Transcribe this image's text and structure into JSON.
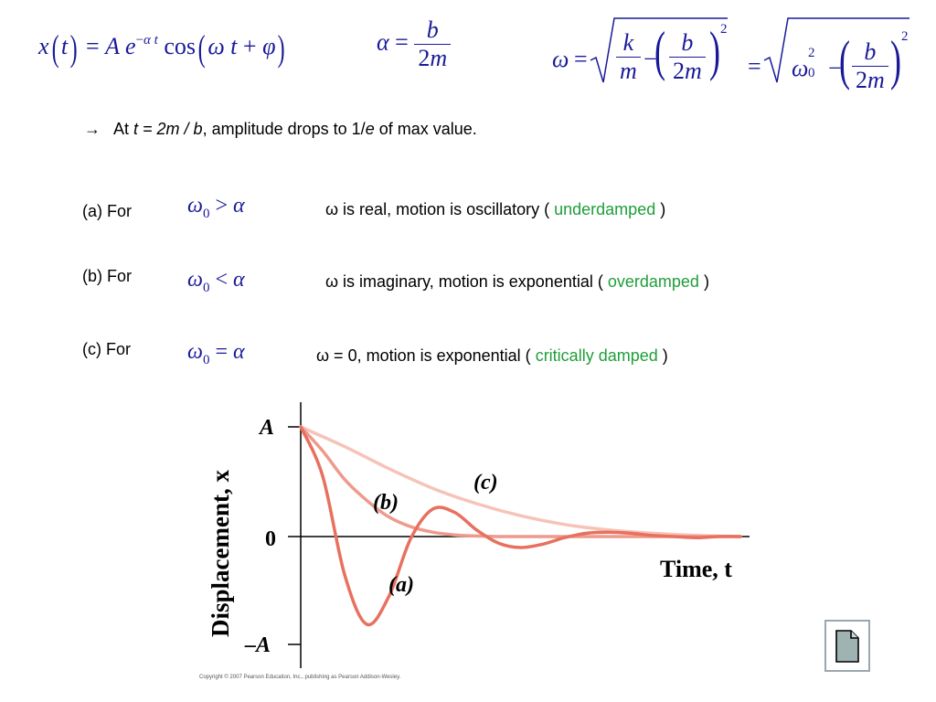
{
  "equations": {
    "x_of_t": "x(t) = A e^(−αt) cos(ωt + φ)",
    "alpha_def": "α = b / 2m",
    "omega_def": "ω = √( k/m − (b/2m)² ) = √( ω0² − (b/2m)² )"
  },
  "arrow_line": {
    "arrow": "→",
    "prefix": "At ",
    "condition": "t = 2m / b",
    "suffix": ",  amplitude drops to 1/",
    "e": "e",
    "end": " of max value."
  },
  "cases": [
    {
      "label": "(a)  For",
      "relation": ">",
      "desc": "ω is real,   motion is oscillatory  ( ",
      "term": "underdamped",
      "close": " )"
    },
    {
      "label": "(b)  For",
      "relation": "<",
      "desc": "ω is imaginary,   motion is exponential  ( ",
      "term": "overdamped",
      "close": " )"
    },
    {
      "label": "(c)  For",
      "relation": "=",
      "desc": "ω = 0,   motion is exponential  ( ",
      "term": "critically damped",
      "close": " )"
    }
  ],
  "chart_data": {
    "type": "line",
    "ylabel": "Displacement, x",
    "xlabel": "Time, t",
    "y_ticks": [
      "A",
      "0",
      "–A"
    ],
    "series": [
      {
        "name": "(a)",
        "color": "#e8705f",
        "x": [
          0,
          0.5,
          1,
          1.5,
          2,
          2.5,
          3,
          3.5,
          4,
          4.5,
          5,
          5.5,
          6,
          6.5,
          7,
          7.5,
          8,
          8.5,
          9,
          9.5,
          10
        ],
        "y": [
          1.0,
          0.55,
          -0.35,
          -0.8,
          -0.55,
          -0.02,
          0.25,
          0.22,
          0.06,
          -0.06,
          -0.1,
          -0.07,
          -0.01,
          0.03,
          0.04,
          0.03,
          0.01,
          0.0,
          -0.01,
          0.0,
          0.0
        ]
      },
      {
        "name": "(b)",
        "color": "#ee9a8c",
        "x": [
          0,
          0.5,
          1,
          1.5,
          2,
          2.5,
          3,
          3.5,
          4,
          4.5,
          5,
          6,
          7,
          8,
          9,
          10
        ],
        "y": [
          1.0,
          0.78,
          0.52,
          0.33,
          0.18,
          0.09,
          0.04,
          0.015,
          0.005,
          0.0,
          0.0,
          0.0,
          0.0,
          0.0,
          0.0,
          0.0
        ]
      },
      {
        "name": "(c)",
        "color": "#f6c3b8",
        "x": [
          0,
          1,
          2,
          3,
          4,
          5,
          6,
          7,
          8,
          9,
          10
        ],
        "y": [
          1.0,
          0.82,
          0.62,
          0.44,
          0.3,
          0.19,
          0.11,
          0.06,
          0.03,
          0.01,
          0.0
        ]
      }
    ],
    "annotations": [
      "(a)",
      "(b)",
      "(c)"
    ],
    "copyright": "Copyright © 2007 Pearson Education, Inc., publishing as Pearson Addison-Wesley."
  },
  "nav_button_icon": "document-icon"
}
